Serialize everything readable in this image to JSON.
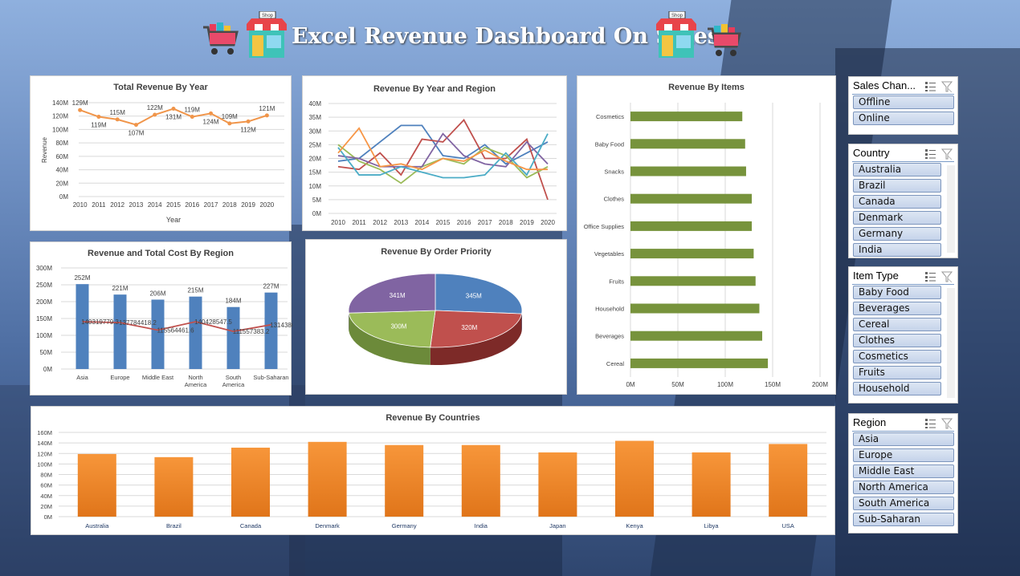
{
  "header": {
    "title": "Excel Revenue Dashboard On Sales"
  },
  "colors": {
    "line_orange": "#f0954a",
    "bar_blue": "#4f81bd",
    "bar_green": "#77933c",
    "bar_orange": "#f48a1e",
    "pie_blue": "#4f81bd",
    "pie_red": "#c0504d",
    "pie_green": "#9bbb59",
    "pie_purple": "#8064a2",
    "cost_line": "#c0504d"
  },
  "icons": {
    "cart": "shopping-cart-icon",
    "shop": "shop-icon"
  },
  "charts": {
    "year": {
      "title": "Total Revenue By Year",
      "ylabel": "Revenue",
      "xlabel": "Year"
    },
    "year_region": {
      "title": "Revenue By Year and Region"
    },
    "items": {
      "title": "Revenue By Items"
    },
    "region_cost": {
      "title": "Revenue and Total Cost By Region"
    },
    "priority": {
      "title": "Revenue By Order Priority"
    },
    "countries": {
      "title": "Revenue By Countries"
    }
  },
  "chart_data": [
    {
      "type": "line",
      "title": "Total Revenue By Year",
      "xlabel": "Year",
      "ylabel": "Revenue",
      "x": [
        "2010",
        "2011",
        "2012",
        "2013",
        "2014",
        "2015",
        "2016",
        "2017",
        "2018",
        "2019",
        "2020"
      ],
      "values": [
        129,
        119,
        115,
        107,
        122,
        131,
        119,
        124,
        109,
        112,
        121
      ],
      "data_labels": [
        "129M",
        "119M",
        "115M",
        "107M",
        "122M",
        "131M",
        "119M",
        "124M",
        "109M",
        "112M",
        "121M"
      ],
      "yticks": [
        "0M",
        "20M",
        "40M",
        "60M",
        "80M",
        "100M",
        "120M",
        "140M"
      ],
      "ylim": [
        0,
        140
      ]
    },
    {
      "type": "line",
      "title": "Revenue By Year and Region",
      "x": [
        "2010",
        "2011",
        "2012",
        "2013",
        "2014",
        "2015",
        "2016",
        "2017",
        "2018",
        "2019",
        "2020"
      ],
      "yticks": [
        "0M",
        "5M",
        "10M",
        "15M",
        "20M",
        "25M",
        "30M",
        "35M",
        "40M"
      ],
      "ylim": [
        0,
        40
      ],
      "series": [
        {
          "color": "#4f81bd",
          "values": [
            19,
            20,
            26,
            32,
            32,
            21,
            20,
            25,
            18,
            22,
            26
          ]
        },
        {
          "color": "#c0504d",
          "values": [
            17,
            16,
            22,
            14,
            27,
            26,
            34,
            20,
            20,
            27,
            5
          ]
        },
        {
          "color": "#9bbb59",
          "values": [
            25,
            19,
            16,
            11,
            17,
            20,
            18,
            24,
            21,
            13,
            17
          ]
        },
        {
          "color": "#8064a2",
          "values": [
            21,
            20,
            17,
            17,
            17,
            29,
            21,
            18,
            17,
            26,
            18
          ]
        },
        {
          "color": "#4bacc6",
          "values": [
            24,
            14,
            14,
            17,
            15,
            13,
            13,
            14,
            22,
            14,
            29
          ]
        },
        {
          "color": "#f79646",
          "values": [
            22,
            31,
            17,
            18,
            16,
            20,
            19,
            23,
            19,
            16,
            16
          ]
        }
      ]
    },
    {
      "type": "bar",
      "title": "Revenue By Items",
      "orientation": "horizontal",
      "categories": [
        "Cosmetics",
        "Baby Food",
        "Snacks",
        "Clothes",
        "Office Supplies",
        "Vegetables",
        "Fruits",
        "Household",
        "Beverages",
        "Cereal"
      ],
      "values": [
        118,
        121,
        122,
        128,
        128,
        130,
        132,
        136,
        139,
        145
      ],
      "xticks": [
        "0M",
        "50M",
        "100M",
        "150M",
        "200M"
      ],
      "xlim": [
        0,
        200
      ]
    },
    {
      "type": "bar",
      "title": "Revenue and Total Cost By Region",
      "categories": [
        "Asia",
        "Europe",
        "Middle East",
        "North America",
        "South America",
        "Sub-Saharan"
      ],
      "series": [
        {
          "values": [
            252,
            221,
            206,
            215,
            184,
            227
          ],
          "labels": [
            "252M",
            "221M",
            "206M",
            "215M",
            "184M",
            "227M"
          ]
        },
        {
          "values": [
            140.3,
            137.8,
            115.6,
            140.4,
            111.6,
            131.4
          ],
          "labels": [
            "140319779.3",
            "137784418.2",
            "115564461.6",
            "140428547.5",
            "111557383.2",
            "131438084.7"
          ]
        }
      ],
      "yticks": [
        "0M",
        "50M",
        "100M",
        "150M",
        "200M",
        "250M",
        "300M"
      ],
      "ylim": [
        0,
        300
      ]
    },
    {
      "type": "pie",
      "title": "Revenue By Order Priority",
      "values": [
        345,
        320,
        300,
        341
      ],
      "labels": [
        "345M",
        "320M",
        "300M",
        "341M"
      ]
    },
    {
      "type": "bar",
      "title": "Revenue By Countries",
      "categories": [
        "Australia",
        "Brazil",
        "Canada",
        "Denmark",
        "Germany",
        "India",
        "Japan",
        "Kenya",
        "Libya",
        "USA"
      ],
      "values": [
        119,
        113,
        131,
        142,
        136,
        136,
        122,
        144,
        122,
        138
      ],
      "yticks": [
        "0M",
        "20M",
        "40M",
        "60M",
        "80M",
        "100M",
        "120M",
        "140M",
        "160M"
      ],
      "ylim": [
        0,
        160
      ]
    }
  ],
  "slicers": [
    {
      "title": "Sales Chan...",
      "items": [
        "Offline",
        "Online"
      ],
      "scroll": false
    },
    {
      "title": "Country",
      "items": [
        "Australia",
        "Brazil",
        "Canada",
        "Denmark",
        "Germany",
        "India"
      ],
      "scroll": true
    },
    {
      "title": "Item Type",
      "items": [
        "Baby Food",
        "Beverages",
        "Cereal",
        "Clothes",
        "Cosmetics",
        "Fruits",
        "Household"
      ],
      "scroll": true
    },
    {
      "title": "Region",
      "items": [
        "Asia",
        "Europe",
        "Middle East",
        "North America",
        "South America",
        "Sub-Saharan"
      ],
      "scroll": false
    }
  ]
}
